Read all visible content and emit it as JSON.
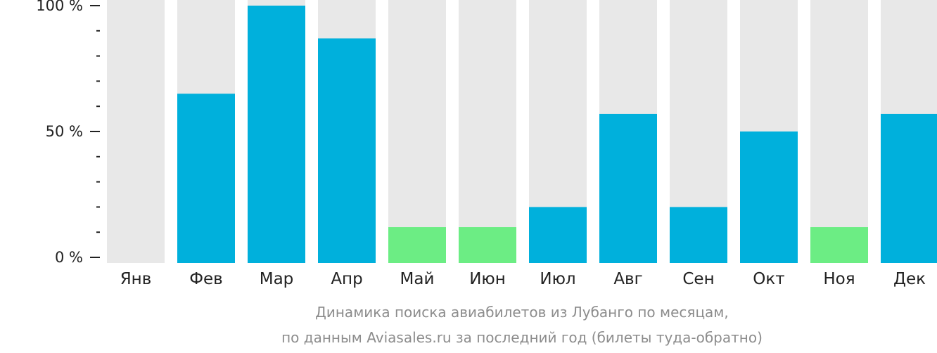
{
  "chart_data": {
    "type": "bar",
    "categories": [
      "Янв",
      "Фев",
      "Мар",
      "Апр",
      "Май",
      "Июн",
      "Июл",
      "Авг",
      "Сен",
      "Окт",
      "Ноя",
      "Дек"
    ],
    "values": [
      0,
      65,
      100,
      87,
      12,
      12,
      20,
      57,
      20,
      50,
      12,
      57
    ],
    "ylim": [
      0,
      100
    ],
    "yticks": [
      {
        "value": 0,
        "label": "0 %"
      },
      {
        "value": 50,
        "label": "50 %"
      },
      {
        "value": 100,
        "label": "100 %"
      }
    ],
    "minor_tick_step": 10,
    "low_threshold": 15,
    "colors": {
      "bar": "#00b0dc",
      "bar_low": "#6ced84",
      "background_bar": "#e8e8e8",
      "axis": "#222222"
    },
    "caption": {
      "line1": "Динамика поиска авиабилетов из Лубанго по месяцам,",
      "line2": "по данным Aviasales.ru за последний год (билеты туда-обратно)"
    }
  }
}
